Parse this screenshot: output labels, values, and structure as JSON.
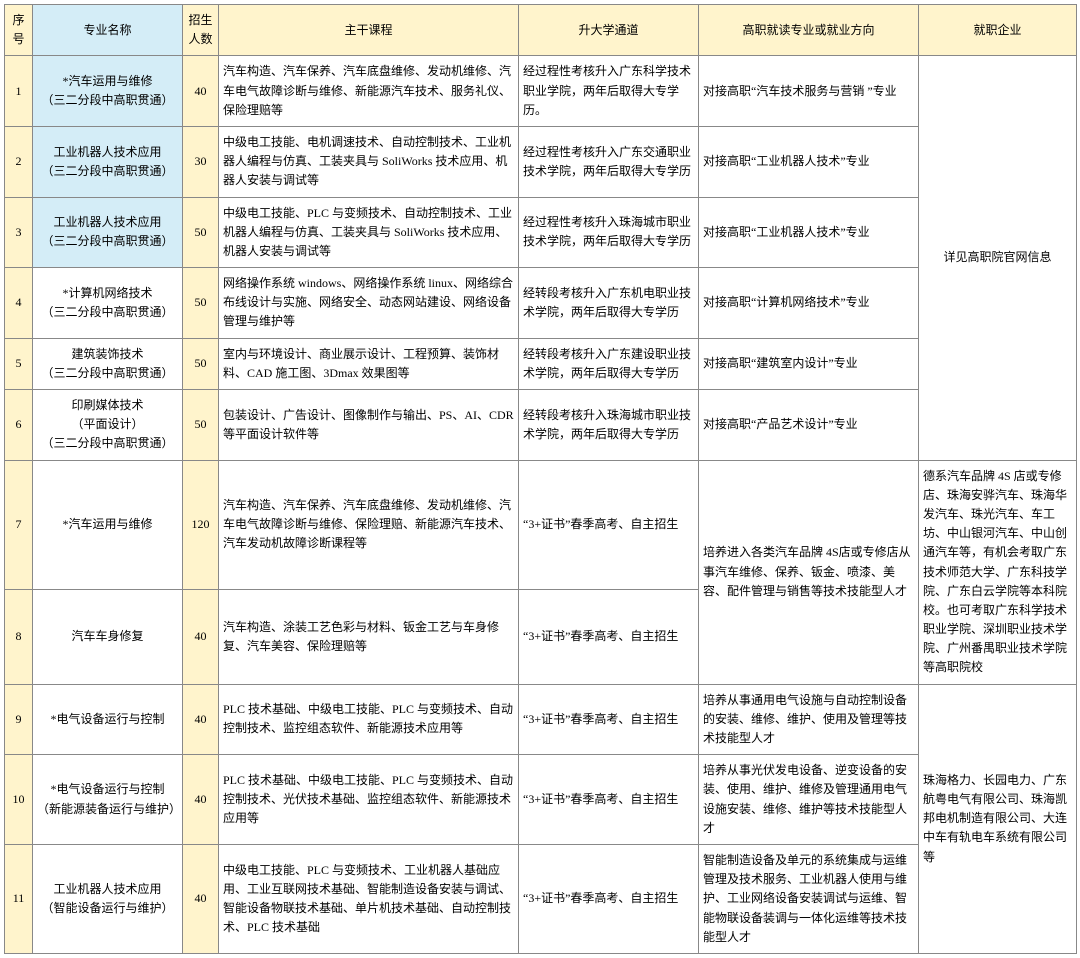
{
  "colors": {
    "header_bg": "#fff4cc",
    "idx_bg": "#fff4cc",
    "major_bg_blue": "#d4edf7",
    "num_bg": "#fff4cc",
    "border": "#888888"
  },
  "headers": {
    "idx": "序号",
    "major": "专业名称",
    "num": "招生人数",
    "course": "主干课程",
    "path": "升大学通道",
    "dir": "高职就读专业或就业方向",
    "ent": "就职企业"
  },
  "rows": [
    {
      "idx": "1",
      "major": "*汽车运用与维修\n（三二分段中高职贯通）",
      "major_blue": true,
      "num": "40",
      "course": "汽车构造、汽车保养、汽车底盘维修、发动机维修、汽车电气故障诊断与维修、新能源汽车技术、服务礼仪、保险理赔等",
      "path": "经过程性考核升入广东科学技术职业学院，两年后取得大专学历。",
      "dir": "对接高职“汽车技术服务与营销 ”专业"
    },
    {
      "idx": "2",
      "major": "工业机器人技术应用\n（三二分段中高职贯通）",
      "major_blue": true,
      "num": "30",
      "course": "中级电工技能、电机调速技术、自动控制技术、工业机器人编程与仿真、工装夹具与 SoliWorks 技术应用、机器人安装与调试等",
      "path": "经过程性考核升入广东交通职业技术学院，两年后取得大专学历",
      "dir": "对接高职“工业机器人技术”专业"
    },
    {
      "idx": "3",
      "major": "工业机器人技术应用\n（三二分段中高职贯通）",
      "major_blue": true,
      "num": "50",
      "course": "中级电工技能、PLC 与变频技术、自动控制技术、工业机器人编程与仿真、工装夹具与 SoliWorks 技术应用、机器人安装与调试等",
      "path": "经过程性考核升入珠海城市职业技术学院，两年后取得大专学历",
      "dir": "对接高职“工业机器人技术”专业"
    },
    {
      "idx": "4",
      "major": "*计算机网络技术\n（三二分段中高职贯通）",
      "major_blue": false,
      "num": "50",
      "course": "网络操作系统 windows、网络操作系统 linux、网络综合布线设计与实施、网络安全、动态网站建设、网络设备管理与维护等",
      "path": "经转段考核升入广东机电职业技术学院，两年后取得大专学历",
      "dir": "对接高职“计算机网络技术”专业"
    },
    {
      "idx": "5",
      "major": "建筑装饰技术\n（三二分段中高职贯通）",
      "major_blue": false,
      "num": "50",
      "course": "室内与环境设计、商业展示设计、工程预算、装饰材料、CAD 施工图、3Dmax 效果图等",
      "path": "经转段考核升入广东建设职业技术学院，两年后取得大专学历",
      "dir": "对接高职“建筑室内设计”专业"
    },
    {
      "idx": "6",
      "major": "印刷媒体技术\n（平面设计）\n（三二分段中高职贯通）",
      "major_blue": false,
      "num": "50",
      "course": "包装设计、广告设计、图像制作与输出、PS、AI、CDR等平面设计软件等",
      "path": "经转段考核升入珠海城市职业技术学院，两年后取得大专学历",
      "dir": "对接高职“产品艺术设计”专业"
    },
    {
      "idx": "7",
      "major": "*汽车运用与维修",
      "major_blue": false,
      "num": "120",
      "course": "汽车构造、汽车保养、汽车底盘维修、发动机维修、汽车电气故障诊断与维修、保险理赔、新能源汽车技术、汽车发动机故障诊断课程等",
      "path": "“3+证书”春季高考、自主招生"
    },
    {
      "idx": "8",
      "major": "汽车车身修复",
      "major_blue": false,
      "num": "40",
      "course": "汽车构造、涂装工艺色彩与材料、钣金工艺与车身修复、汽车美容、保险理赔等",
      "path": "“3+证书”春季高考、自主招生"
    },
    {
      "idx": "9",
      "major": "*电气设备运行与控制",
      "major_blue": false,
      "num": "40",
      "course": "PLC 技术基础、中级电工技能、PLC 与变频技术、自动控制技术、监控组态软件、新能源技术应用等",
      "path": "“3+证书”春季高考、自主招生",
      "dir": "培养从事通用电气设施与自动控制设备的安装、维修、维护、使用及管理等技术技能型人才"
    },
    {
      "idx": "10",
      "major": "*电气设备运行与控制\n（新能源装备运行与维护）",
      "major_blue": false,
      "num": "40",
      "course": "PLC 技术基础、中级电工技能、PLC 与变频技术、自动控制技术、光伏技术基础、监控组态软件、新能源技术应用等",
      "path": "“3+证书”春季高考、自主招生",
      "dir": "培养从事光伏发电设备、逆变设备的安装、使用、维护、维修及管理通用电气设施安装、维修、维护等技术技能型人才"
    },
    {
      "idx": "11",
      "major": "工业机器人技术应用\n（智能设备运行与维护）",
      "major_blue": false,
      "num": "40",
      "course": "中级电工技能、PLC 与变频技术、工业机器人基础应用、工业互联网技术基础、智能制造设备安装与调试、智能设备物联技术基础、单片机技术基础、自动控制技术、PLC 技术基础",
      "path": "“3+证书”春季高考、自主招生",
      "dir": "智能制造设备及单元的系统集成与运维管理及技术服务、工业机器人使用与维护、工业网络设备安装调试与运维、智能物联设备装调与一体化运维等技术技能型人才"
    }
  ],
  "merged": {
    "ent_1_6": "详见高职院官网信息",
    "dir_7_8": "培养进入各类汽车品牌 4S店或专修店从事汽车维修、保养、钣金、喷漆、美容、配件管理与销售等技术技能型人才",
    "ent_7_8": "德系汽车品牌 4S 店或专修店、珠海安骅汽车、珠海华发汽车、珠光汽车、车工坊、中山银河汽车、中山创通汽车等，有机会考取广东技术师范大学、广东科技学院、广东白云学院等本科院校。也可考取广东科学技术职业学院、深圳职业技术学院、广州番禺职业技术学院等高职院校",
    "ent_9_11": "珠海格力、长园电力、广东航粤电气有限公司、珠海凯邦电机制造有限公司、大连中车有轨电车系统有限公司等"
  }
}
